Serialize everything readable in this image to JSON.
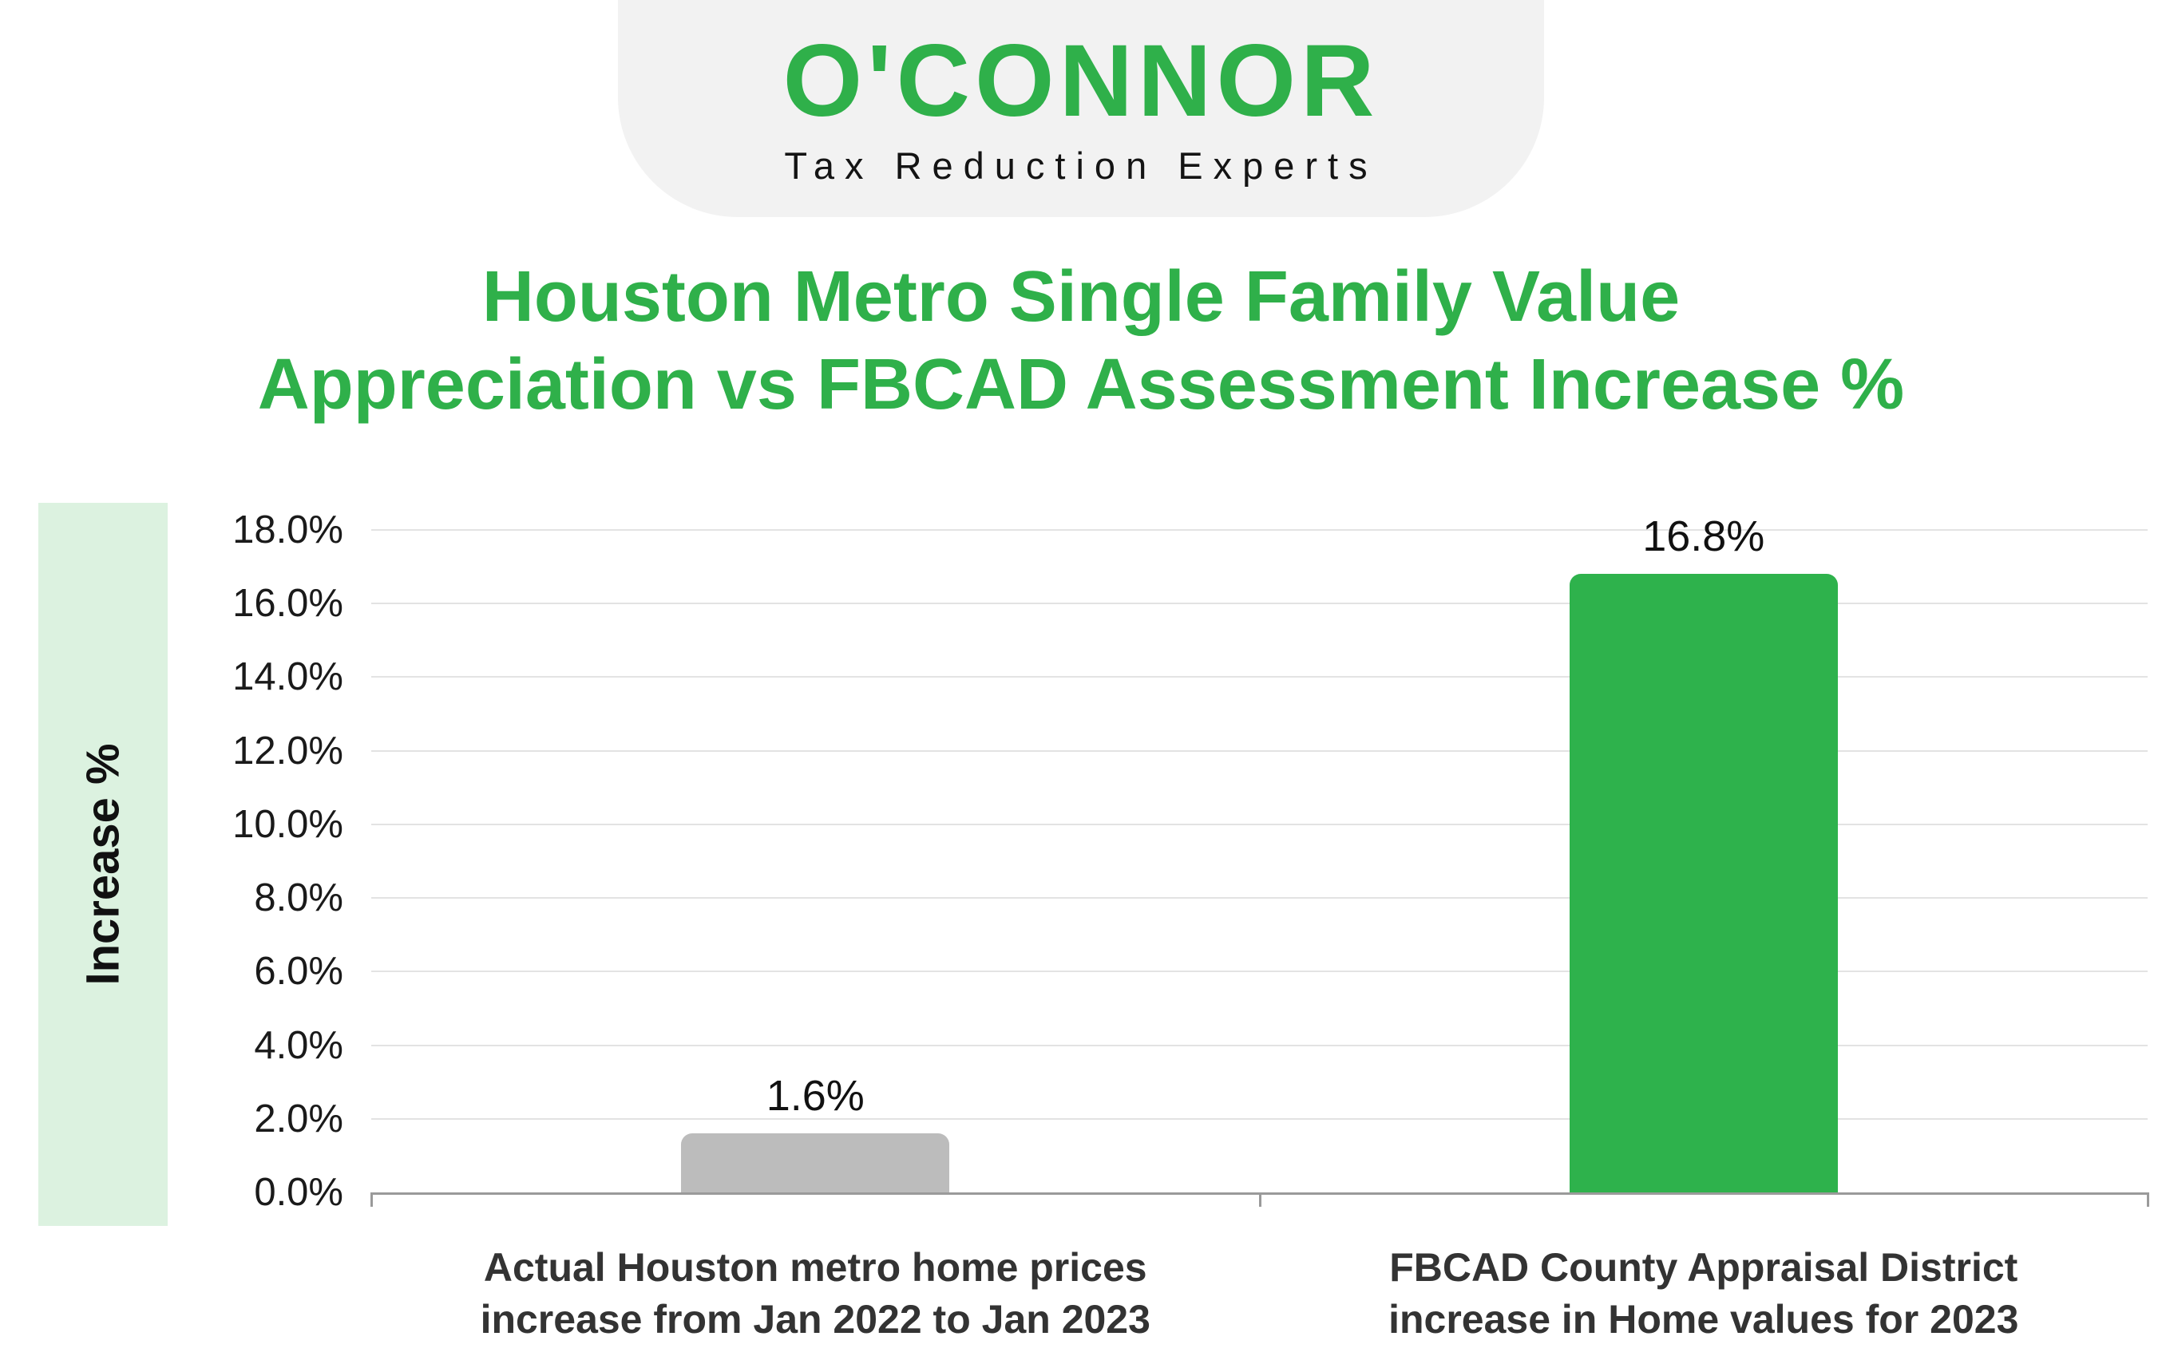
{
  "logo": {
    "wordmark": "O'CONNOR",
    "tagline": "Tax Reduction Experts"
  },
  "title": {
    "line1": "Houston Metro Single Family Value",
    "line2": "Appreciation vs FBCAD Assessment Increase %"
  },
  "chart_data": {
    "type": "bar",
    "title": "Houston Metro Single Family Value Appreciation vs FBCAD Assessment Increase %",
    "xlabel": "",
    "ylabel": "Increase %",
    "ylim": [
      0,
      18
    ],
    "ytick_step": 2,
    "grid": true,
    "legend": "none",
    "yticks": [
      {
        "value": 0,
        "label": "0.0%"
      },
      {
        "value": 2,
        "label": "2.0%"
      },
      {
        "value": 4,
        "label": "4.0%"
      },
      {
        "value": 6,
        "label": "6.0%"
      },
      {
        "value": 8,
        "label": "8.0%"
      },
      {
        "value": 10,
        "label": "10.0%"
      },
      {
        "value": 12,
        "label": "12.0%"
      },
      {
        "value": 14,
        "label": "14.0%"
      },
      {
        "value": 16,
        "label": "16.0%"
      },
      {
        "value": 18,
        "label": "18.0%"
      }
    ],
    "categories": [
      {
        "line1": "Actual Houston metro home prices",
        "line2": "increase from Jan 2022 to Jan 2023"
      },
      {
        "line1": "FBCAD County Appraisal District",
        "line2": "increase in Home values for 2023"
      }
    ],
    "series": [
      {
        "name": "Increase %",
        "values": [
          1.6,
          16.8
        ],
        "value_labels": [
          "1.6%",
          "16.8%"
        ],
        "bar_colors": [
          "#bcbcbc",
          "#2eb24c"
        ]
      }
    ]
  },
  "colors": {
    "brand_green": "#2fb04a",
    "bar_green": "#2eb24c",
    "bar_gray": "#bcbcbc",
    "band_green": "#dcf2e0",
    "grid_line": "#e3e3e3",
    "axis_line": "#9a9a9a",
    "text_dark": "#1a1a1a",
    "blob_gray": "#f2f2f2"
  }
}
